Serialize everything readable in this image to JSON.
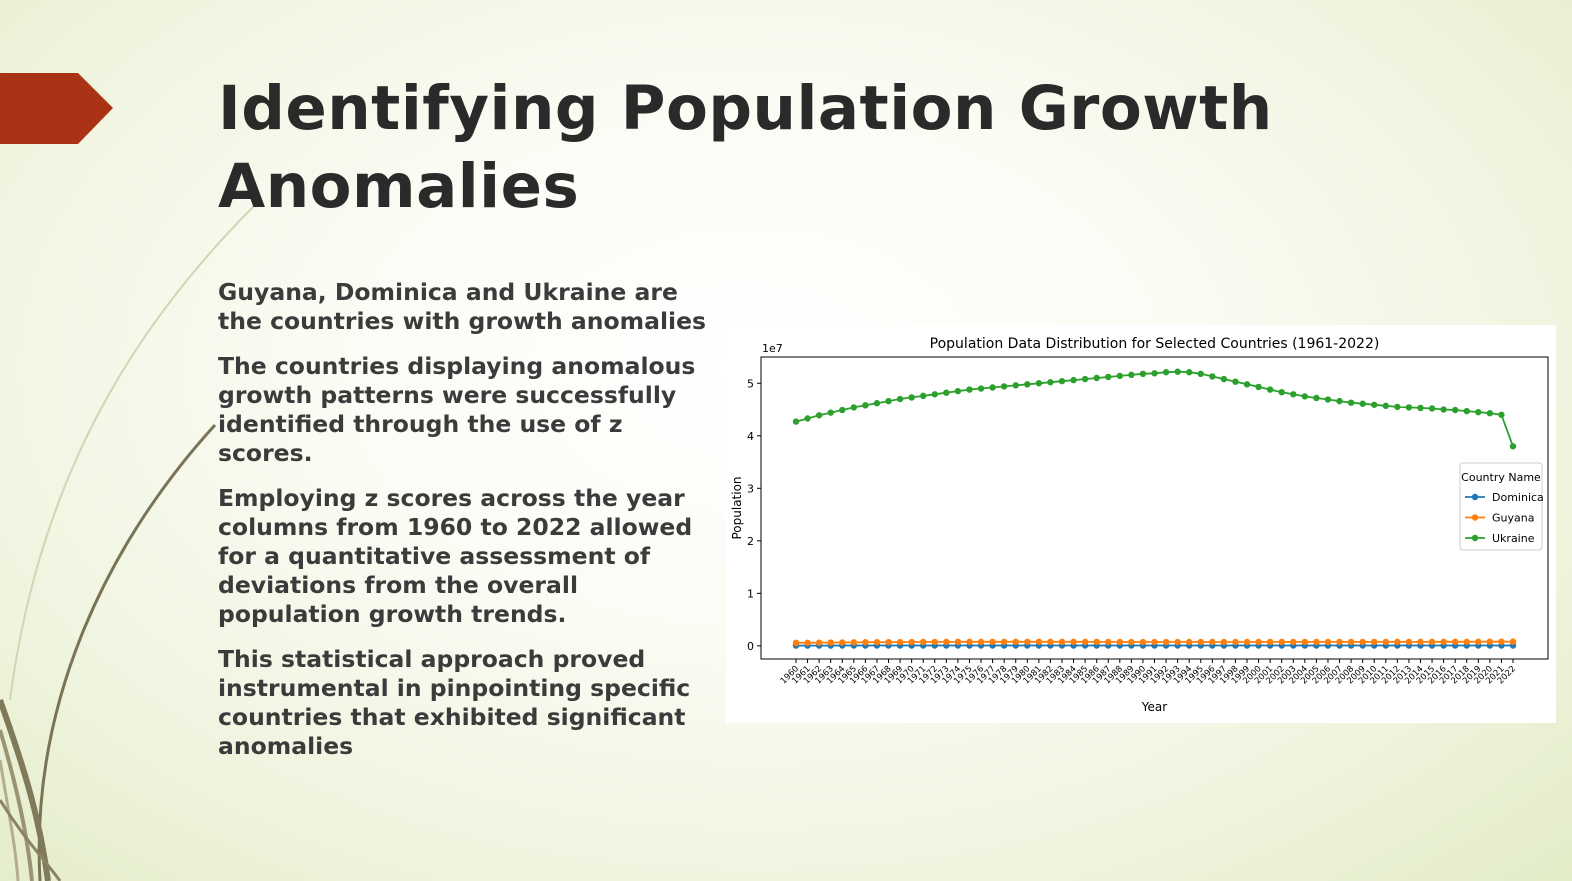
{
  "slide": {
    "title": "Identifying Population Growth Anomalies",
    "bullets": [
      "Guyana, Dominica and Ukraine are the countries with growth anomalies",
      "The countries displaying anomalous growth patterns were successfully identified through the use of z scores.",
      "Employing z scores across the year columns from 1960 to 2022 allowed for a quantitative assessment of deviations from the overall population growth trends.",
      "This statistical approach proved instrumental in pinpointing specific countries that exhibited significant anomalies"
    ],
    "accent_color": "#a93314",
    "bullet_icon": "arrow-bullet-icon"
  },
  "chart_data": {
    "type": "line",
    "title": "Population Data Distribution for Selected Countries (1961-2022)",
    "xlabel": "Year",
    "ylabel": "Population",
    "y_scale_label": "1e7",
    "ylim": [
      -0.25,
      5.5
    ],
    "yticks": [
      0,
      1,
      2,
      3,
      4,
      5
    ],
    "grid": false,
    "legend": {
      "title": "Country Name",
      "placement": "right"
    },
    "x": [
      1960,
      1961,
      1962,
      1963,
      1964,
      1965,
      1966,
      1967,
      1968,
      1969,
      1970,
      1971,
      1972,
      1973,
      1974,
      1975,
      1976,
      1977,
      1978,
      1979,
      1980,
      1981,
      1982,
      1983,
      1984,
      1985,
      1986,
      1987,
      1988,
      1989,
      1990,
      1991,
      1992,
      1993,
      1994,
      1995,
      1996,
      1997,
      1998,
      1999,
      2000,
      2001,
      2002,
      2003,
      2004,
      2005,
      2006,
      2007,
      2008,
      2009,
      2010,
      2011,
      2012,
      2013,
      2014,
      2015,
      2016,
      2017,
      2018,
      2019,
      2020,
      2021,
      2022
    ],
    "series": [
      {
        "name": "Dominica",
        "color": "#1f77b4",
        "values": [
          0.006,
          0.006,
          0.006,
          0.006,
          0.007,
          0.007,
          0.007,
          0.007,
          0.007,
          0.007,
          0.007,
          0.007,
          0.007,
          0.007,
          0.007,
          0.007,
          0.007,
          0.007,
          0.007,
          0.007,
          0.007,
          0.007,
          0.007,
          0.007,
          0.007,
          0.007,
          0.007,
          0.007,
          0.007,
          0.007,
          0.007,
          0.007,
          0.007,
          0.007,
          0.007,
          0.007,
          0.007,
          0.007,
          0.007,
          0.007,
          0.007,
          0.007,
          0.007,
          0.007,
          0.007,
          0.007,
          0.007,
          0.007,
          0.007,
          0.007,
          0.007,
          0.007,
          0.007,
          0.007,
          0.007,
          0.007,
          0.007,
          0.007,
          0.007,
          0.007,
          0.007,
          0.007,
          0.007
        ]
      },
      {
        "name": "Guyana",
        "color": "#ff7f0e",
        "values": [
          0.057,
          0.059,
          0.061,
          0.063,
          0.065,
          0.067,
          0.069,
          0.07,
          0.071,
          0.072,
          0.073,
          0.074,
          0.075,
          0.076,
          0.076,
          0.077,
          0.077,
          0.077,
          0.077,
          0.077,
          0.078,
          0.078,
          0.077,
          0.077,
          0.077,
          0.076,
          0.076,
          0.075,
          0.074,
          0.073,
          0.073,
          0.073,
          0.073,
          0.073,
          0.074,
          0.074,
          0.074,
          0.074,
          0.074,
          0.074,
          0.075,
          0.075,
          0.075,
          0.075,
          0.075,
          0.075,
          0.075,
          0.075,
          0.075,
          0.075,
          0.075,
          0.075,
          0.076,
          0.076,
          0.076,
          0.077,
          0.077,
          0.078,
          0.078,
          0.079,
          0.08,
          0.08,
          0.081
        ]
      },
      {
        "name": "Ukraine",
        "color": "#2ca02c",
        "values": [
          4.27,
          4.33,
          4.39,
          4.44,
          4.49,
          4.54,
          4.58,
          4.62,
          4.66,
          4.7,
          4.73,
          4.76,
          4.79,
          4.82,
          4.85,
          4.88,
          4.9,
          4.92,
          4.94,
          4.96,
          4.98,
          5.0,
          5.02,
          5.04,
          5.06,
          5.08,
          5.1,
          5.12,
          5.14,
          5.16,
          5.18,
          5.19,
          5.21,
          5.22,
          5.21,
          5.18,
          5.13,
          5.08,
          5.03,
          4.98,
          4.93,
          4.88,
          4.83,
          4.79,
          4.75,
          4.72,
          4.69,
          4.66,
          4.63,
          4.61,
          4.59,
          4.57,
          4.55,
          4.54,
          4.53,
          4.52,
          4.5,
          4.49,
          4.47,
          4.45,
          4.43,
          4.4,
          3.8
        ]
      }
    ]
  }
}
